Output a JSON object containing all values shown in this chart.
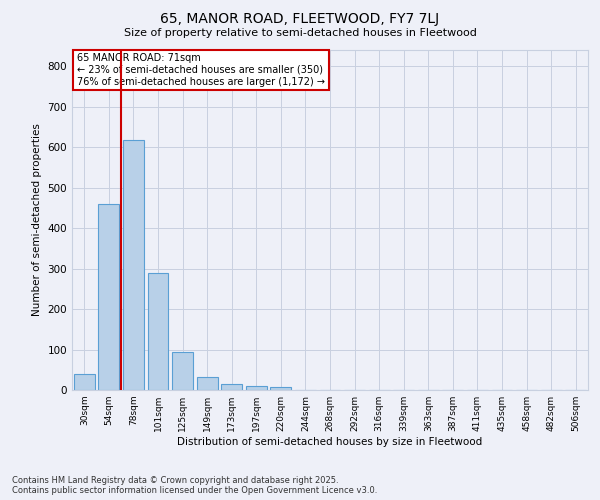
{
  "title": "65, MANOR ROAD, FLEETWOOD, FY7 7LJ",
  "subtitle": "Size of property relative to semi-detached houses in Fleetwood",
  "xlabel": "Distribution of semi-detached houses by size in Fleetwood",
  "ylabel": "Number of semi-detached properties",
  "bins": [
    "30sqm",
    "54sqm",
    "78sqm",
    "101sqm",
    "125sqm",
    "149sqm",
    "173sqm",
    "197sqm",
    "220sqm",
    "244sqm",
    "268sqm",
    "292sqm",
    "316sqm",
    "339sqm",
    "363sqm",
    "387sqm",
    "411sqm",
    "435sqm",
    "458sqm",
    "482sqm",
    "506sqm"
  ],
  "values": [
    40,
    460,
    618,
    290,
    95,
    33,
    15,
    10,
    7,
    0,
    0,
    0,
    0,
    0,
    0,
    0,
    0,
    0,
    0,
    0,
    0
  ],
  "bar_color": "#b8d0e8",
  "bar_edge_color": "#5a9fd4",
  "vline_color": "#cc0000",
  "vline_pos": 1.5,
  "annotation_title": "65 MANOR ROAD: 71sqm",
  "annotation_line1": "← 23% of semi-detached houses are smaller (350)",
  "annotation_line2": "76% of semi-detached houses are larger (1,172) →",
  "annotation_box_color": "#cc0000",
  "annotation_text_color": "#000000",
  "annotation_bg_color": "#ffffff",
  "ylim": [
    0,
    840
  ],
  "yticks": [
    0,
    100,
    200,
    300,
    400,
    500,
    600,
    700,
    800
  ],
  "grid_color": "#c8d0e0",
  "bg_color": "#eef0f8",
  "footnote1": "Contains HM Land Registry data © Crown copyright and database right 2025.",
  "footnote2": "Contains public sector information licensed under the Open Government Licence v3.0."
}
